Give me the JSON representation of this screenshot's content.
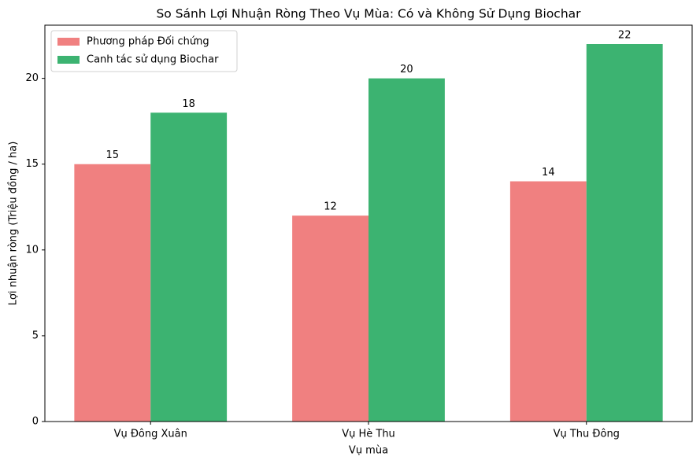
{
  "chart_data": {
    "type": "bar",
    "title": "So Sánh Lợi Nhuận Ròng Theo Vụ Mùa: Có và Không Sử Dụng Biochar",
    "x_label": "Vụ mùa",
    "y_label": "Lợi nhuận ròng (Triệu đồng / ha)",
    "categories": [
      "Vụ Đông Xuân",
      "Vụ Hè Thu",
      "Vụ Thu Đông"
    ],
    "series": [
      {
        "name": "Phương pháp Đối chứng",
        "color": "#f08080",
        "values": [
          15,
          12,
          14
        ]
      },
      {
        "name": "Canh tác sử dụng Biochar",
        "color": "#3cb371",
        "values": [
          18,
          20,
          22
        ]
      }
    ],
    "ylim": [
      0,
      23.1
    ],
    "yticks": [
      0,
      5,
      10,
      15,
      20
    ],
    "legend": "upper left",
    "grid": false
  }
}
